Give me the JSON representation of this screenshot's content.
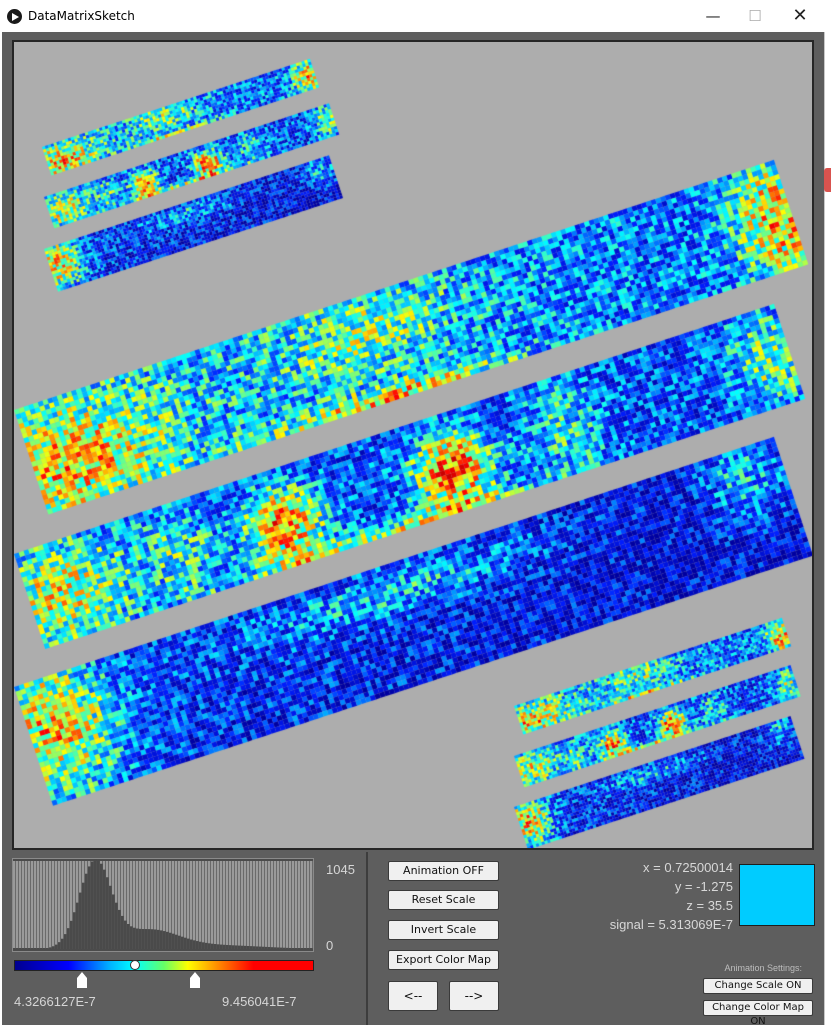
{
  "window": {
    "title": "DataMatrixSketch"
  },
  "histogram": {
    "max_count": "1045",
    "min_count": "0"
  },
  "color_scale": {
    "min_value": "4.3266127E-7",
    "max_value": "9.456041E-7"
  },
  "buttons": {
    "animation": "Animation OFF",
    "reset_scale": "Reset Scale",
    "invert_scale": "Invert Scale",
    "export_color_map": "Export Color Map",
    "prev": "<--",
    "next": "-->"
  },
  "readout": {
    "x": "x = 0.72500014",
    "y": "y = -1.275",
    "z": "z = 35.5",
    "signal": "signal = 5.313069E-7"
  },
  "swatch_color": "#00ccff",
  "animation_settings": {
    "label": "Animation Settings:",
    "change_scale": "Change Scale ON",
    "change_color_map": "Change Color Map ON"
  },
  "icons": {
    "app": "play-circle-icon",
    "minimize": "minimize-icon",
    "maximize": "maximize-icon",
    "close": "close-icon"
  }
}
